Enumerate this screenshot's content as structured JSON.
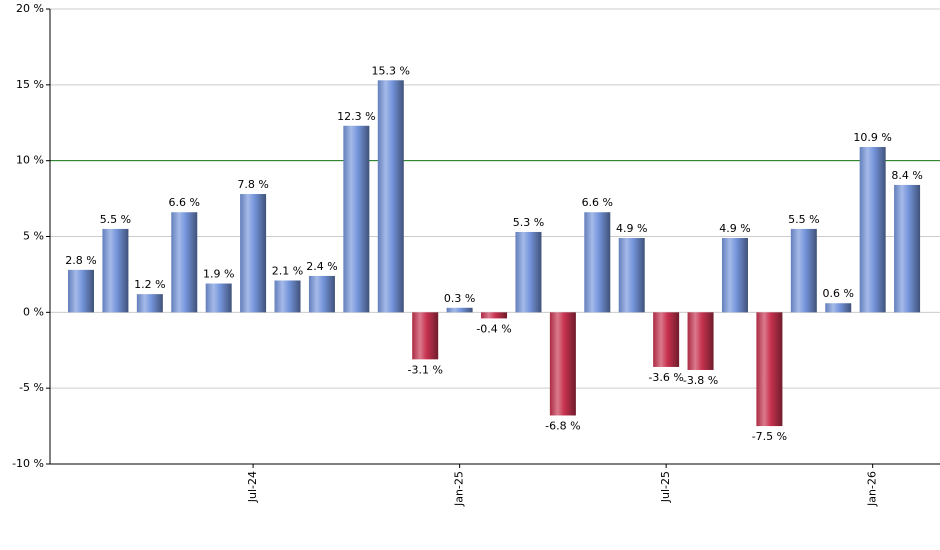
{
  "chart_data": {
    "type": "bar",
    "categories": [
      null,
      null,
      null,
      null,
      null,
      "Jul-24",
      null,
      null,
      null,
      null,
      null,
      "Jan-25",
      null,
      null,
      null,
      null,
      null,
      "Jul-25",
      null,
      null,
      null,
      null,
      null,
      "Jan-26",
      null
    ],
    "values": [
      2.8,
      5.5,
      1.2,
      6.6,
      1.9,
      7.8,
      2.1,
      2.4,
      12.3,
      15.3,
      -3.1,
      0.3,
      -0.4,
      5.3,
      -6.8,
      6.6,
      4.9,
      -3.6,
      -3.8,
      4.9,
      -7.5,
      5.5,
      0.6,
      10.9,
      8.4
    ],
    "value_labels": [
      "2.8 %",
      "5.5 %",
      "1.2 %",
      "6.6 %",
      "1.9 %",
      "7.8 %",
      "2.1 %",
      "2.4 %",
      "12.3 %",
      "15.3 %",
      "-3.1 %",
      "0.3 %",
      "-0.4 %",
      "5.3 %",
      "-6.8 %",
      "6.6 %",
      "4.9 %",
      "-3.6 %",
      "-3.8 %",
      "4.9 %",
      "-7.5 %",
      "5.5 %",
      "0.6 %",
      "10.9 %",
      "8.4 %"
    ],
    "color_positive": "#7595dc",
    "color_negative": "#c8324f",
    "ylim": [
      -10,
      20
    ],
    "yticks": [
      {
        "value": -10,
        "label": "-10 %"
      },
      {
        "value": -5,
        "label": "-5 %"
      },
      {
        "value": 0,
        "label": "0 %"
      },
      {
        "value": 5,
        "label": "5 %"
      },
      {
        "value": 10,
        "label": "10 %"
      },
      {
        "value": 15,
        "label": "15 %"
      },
      {
        "value": 20,
        "label": "20 %"
      }
    ],
    "grid": true,
    "reference_line": {
      "value": 10,
      "color": "#1a7a1a"
    }
  }
}
